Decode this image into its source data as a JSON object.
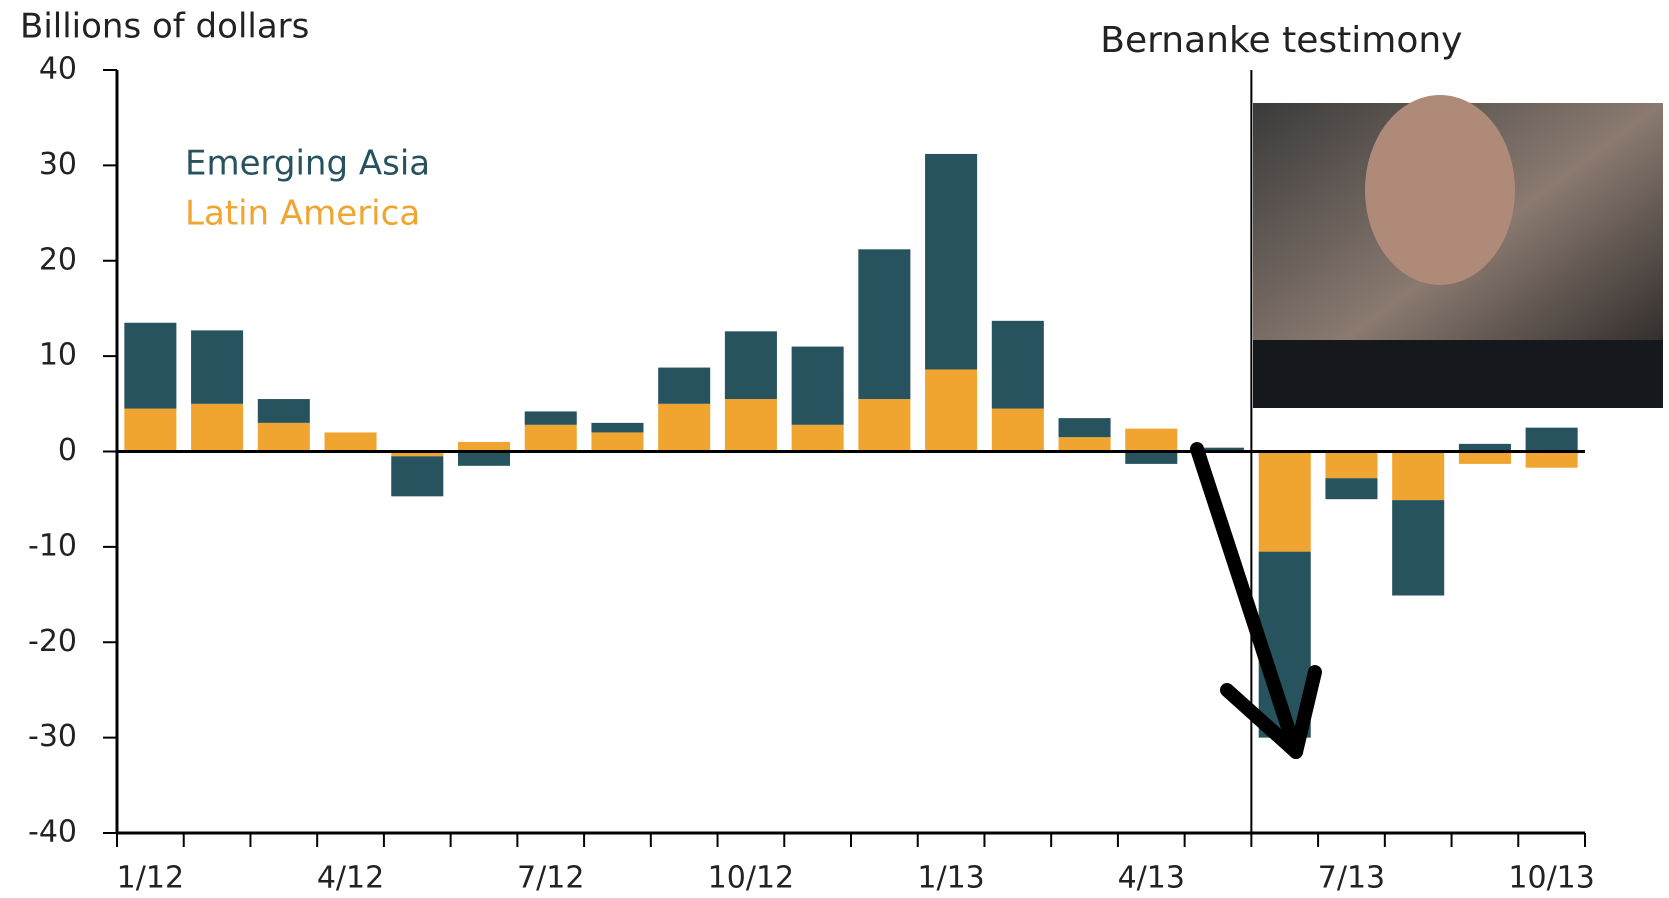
{
  "chart_data": {
    "type": "stacked-bar",
    "title": "Billions of dollars",
    "annotation": "Bernanke testimony",
    "categories": [
      "1/12",
      null,
      null,
      "4/12",
      null,
      null,
      "7/12",
      null,
      null,
      "10/12",
      null,
      null,
      "1/13",
      null,
      null,
      "4/13",
      null,
      null,
      "7/13",
      null,
      null,
      "10/13"
    ],
    "series": [
      {
        "name": "Latin America",
        "color": "#f0a530",
        "values": [
          4.5,
          5,
          3,
          2,
          -0.5,
          1,
          2.8,
          2,
          5,
          5.5,
          2.8,
          5.5,
          8.6,
          4.5,
          1.5,
          2.4,
          0,
          -10.5,
          -2.8,
          -5.1,
          -1.3,
          -1.7
        ]
      },
      {
        "name": "Emerging Asia",
        "color": "#27535f",
        "values": [
          9,
          7.7,
          2.5,
          0,
          -4.2,
          -1.5,
          1.4,
          1,
          3.8,
          7.1,
          8.2,
          15.7,
          22.6,
          9.2,
          2,
          -1.3,
          0.4,
          -19.5,
          -2.2,
          -10,
          0.8,
          2.5
        ]
      }
    ],
    "ylim": [
      -40,
      40
    ],
    "yticks": [
      -40,
      -30,
      -20,
      -10,
      0,
      10,
      20,
      30,
      40
    ],
    "legend": "upper left"
  }
}
